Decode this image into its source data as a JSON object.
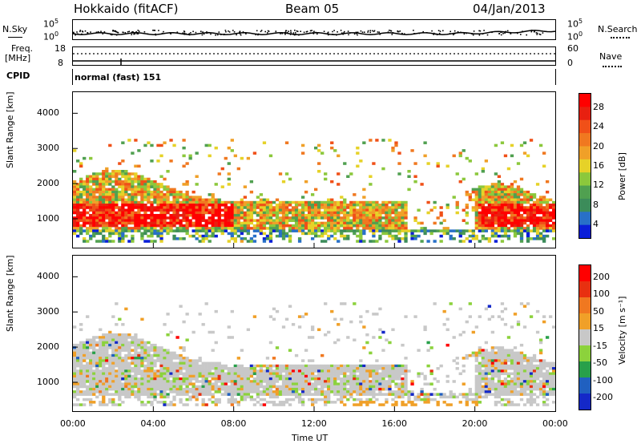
{
  "header": {
    "station": "Hokkaido (fitACF)",
    "beam": "Beam 05",
    "date": "04/Jan/2013"
  },
  "top_panels": {
    "nsky_label": "N.Sky",
    "nsearch_label": "N.Search",
    "noise_ticks": [
      "10^5",
      "10^0"
    ],
    "noise_ticks_right": [
      "10^5",
      "10^0"
    ],
    "freq_label_line1": "Freq.",
    "freq_label_line2": "[MHz]",
    "freq_ticks": [
      "18",
      "8"
    ],
    "nave_label": "Nave",
    "nave_ticks": [
      "60",
      "0"
    ],
    "cpid_label": "CPID",
    "cpid_value": "normal (fast) 151"
  },
  "x_axis": {
    "label": "Time UT",
    "ticks": [
      "00:00",
      "04:00",
      "08:00",
      "12:00",
      "16:00",
      "20:00",
      "00:00"
    ]
  },
  "chart_data": [
    {
      "type": "heatmap",
      "name": "power",
      "ylabel": "Slant Range [km]",
      "yticks": [
        1000,
        2000,
        3000,
        4000
      ],
      "ylim": [
        180,
        4600
      ],
      "xlim_hours": [
        0,
        24
      ],
      "colorbar": {
        "label": "Power [dB]",
        "ticks": [
          "4",
          "8",
          "12",
          "16",
          "20",
          "24",
          "28"
        ],
        "colors": [
          "#0a1ed8",
          "#2870c8",
          "#3c8c5a",
          "#50a050",
          "#8cc83c",
          "#e6d228",
          "#f0a028",
          "#f07820",
          "#f05018",
          "#e82010",
          "#ff0000"
        ]
      }
    },
    {
      "type": "heatmap",
      "name": "velocity",
      "ylabel": "Slant Range [km]",
      "yticks": [
        1000,
        2000,
        3000,
        4000
      ],
      "ylim": [
        180,
        4600
      ],
      "xlim_hours": [
        0,
        24
      ],
      "colorbar": {
        "label": "Velocity [m s⁻¹]",
        "ticks": [
          "200",
          "100",
          "50",
          "15",
          "-15",
          "-50",
          "-100",
          "-200"
        ],
        "colors": [
          "#1428c8",
          "#2060c0",
          "#28a04a",
          "#8cd23c",
          "#c8c8c8",
          "#f0a028",
          "#f07820",
          "#e83010",
          "#ff0000"
        ]
      }
    }
  ]
}
